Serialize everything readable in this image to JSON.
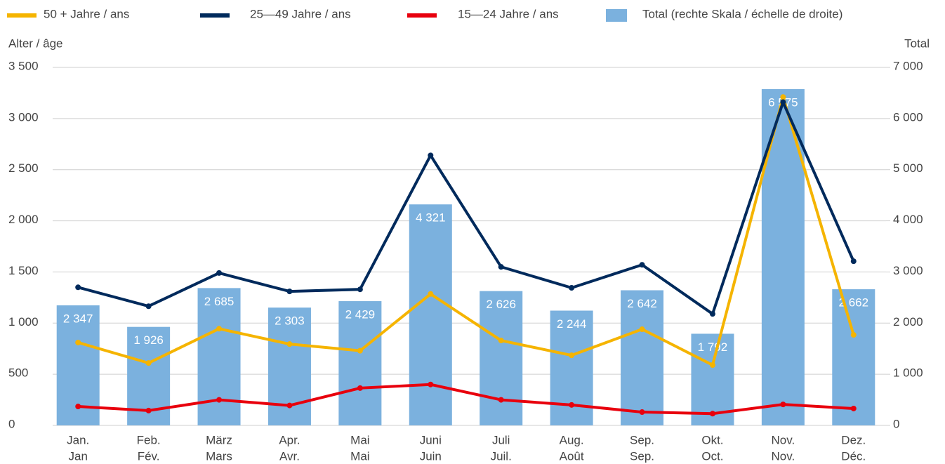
{
  "chart_data": {
    "type": "bar-line",
    "categories": [
      [
        "Jan.",
        "Jan"
      ],
      [
        "Feb.",
        "Fév."
      ],
      [
        "März",
        "Mars"
      ],
      [
        "Apr.",
        "Avr."
      ],
      [
        "Mai",
        "Mai"
      ],
      [
        "Juni",
        "Juin"
      ],
      [
        "Juli",
        "Juil."
      ],
      [
        "Aug.",
        "Août"
      ],
      [
        "Sep.",
        "Sep."
      ],
      [
        "Okt.",
        "Oct."
      ],
      [
        "Nov.",
        "Nov."
      ],
      [
        "Dez.",
        "Déc."
      ]
    ],
    "ylabel": "Alter / âge",
    "y2label": "Total",
    "ylim": [
      0,
      3500
    ],
    "yticks": [
      0,
      500,
      {
        "value": 1000,
        "label": "1 000"
      },
      {
        "value": 1500,
        "label": "1 500"
      },
      {
        "value": 2000,
        "label": "2 000"
      },
      {
        "value": 2500,
        "label": "2 500"
      },
      {
        "value": 3000,
        "label": "3 000"
      },
      {
        "value": 3500,
        "label": "3 500"
      }
    ],
    "y2lim": [
      0,
      7000
    ],
    "y2ticks": [
      0,
      {
        "value": 1000,
        "label": "1 000"
      },
      {
        "value": 2000,
        "label": "2 000"
      },
      {
        "value": 3000,
        "label": "3 000"
      },
      {
        "value": 4000,
        "label": "4 000"
      },
      {
        "value": 5000,
        "label": "5 000"
      },
      {
        "value": 6000,
        "label": "6 000"
      },
      {
        "value": 7000,
        "label": "7 000"
      }
    ],
    "grid": true,
    "legend": "top",
    "series": [
      {
        "name": "50 + Jahre / ans",
        "type": "line",
        "color": "#f5b400",
        "values": [
          810,
          610,
          945,
          795,
          730,
          1285,
          830,
          685,
          940,
          590,
          3210,
          885
        ]
      },
      {
        "name": "25—49 Jahre / ans",
        "type": "line",
        "color": "#002a5c",
        "values": [
          1350,
          1165,
          1490,
          1310,
          1330,
          2640,
          1550,
          1345,
          1570,
          1090,
          3160,
          1605
        ]
      },
      {
        "name": "15—24 Jahre / ans",
        "type": "line",
        "color": "#e8000d",
        "values": [
          185,
          145,
          250,
          195,
          365,
          400,
          250,
          200,
          130,
          115,
          205,
          165
        ]
      },
      {
        "name": "Total (rechte Skala / échelle de droite)",
        "type": "bar",
        "axis": "y2",
        "color": "#7bb1de",
        "values": [
          2347,
          1926,
          2685,
          2303,
          2429,
          4321,
          2626,
          2244,
          2642,
          1792,
          6575,
          2662
        ],
        "value_labels": [
          "2 347",
          "1 926",
          "2 685",
          "2 303",
          "2 429",
          "4 321",
          "2 626",
          "2 244",
          "2 642",
          "1 792",
          "6 575",
          "2 662"
        ]
      }
    ]
  }
}
